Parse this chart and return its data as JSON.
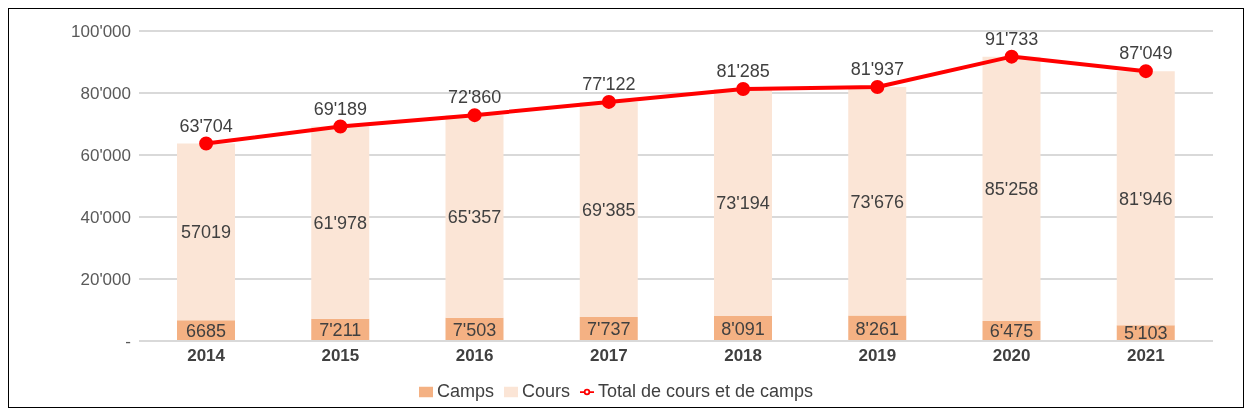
{
  "chart_data": {
    "type": "bar",
    "stacked": true,
    "categories": [
      "2014",
      "2015",
      "2016",
      "2017",
      "2018",
      "2019",
      "2020",
      "2021"
    ],
    "series": [
      {
        "name": "Camps",
        "color": "#f4b183",
        "values": [
          6685,
          7211,
          7503,
          7737,
          8091,
          8261,
          6475,
          5103
        ],
        "value_labels": [
          "6685",
          "7'211",
          "7'503",
          "7'737",
          "8'091",
          "8'261",
          "6'475",
          "5'103"
        ]
      },
      {
        "name": "Cours",
        "color": "#fbe5d6",
        "values": [
          57019,
          61978,
          65357,
          69385,
          73194,
          73676,
          85258,
          81946
        ],
        "value_labels": [
          "57019",
          "61'978",
          "65'357",
          "69'385",
          "73'194",
          "73'676",
          "85'258",
          "81'946"
        ]
      },
      {
        "name": "Total de cours et de camps",
        "type": "line",
        "color": "#ff0000",
        "values": [
          63704,
          69189,
          72860,
          77122,
          81285,
          81937,
          91733,
          87049
        ],
        "value_labels": [
          "63'704",
          "69'189",
          "72'860",
          "77'122",
          "81'285",
          "81'937",
          "91'733",
          "87'049"
        ]
      }
    ],
    "ylim": [
      0,
      100000
    ],
    "yticks": [
      {
        "value": 0,
        "label": "-"
      },
      {
        "value": 20000,
        "label": "20'000"
      },
      {
        "value": 40000,
        "label": "40'000"
      },
      {
        "value": 60000,
        "label": "60'000"
      },
      {
        "value": 80000,
        "label": "80'000"
      },
      {
        "value": 100000,
        "label": "100'000"
      }
    ],
    "grid": "y",
    "legend": "bottom",
    "marker": "circle",
    "line_style": "solid"
  }
}
